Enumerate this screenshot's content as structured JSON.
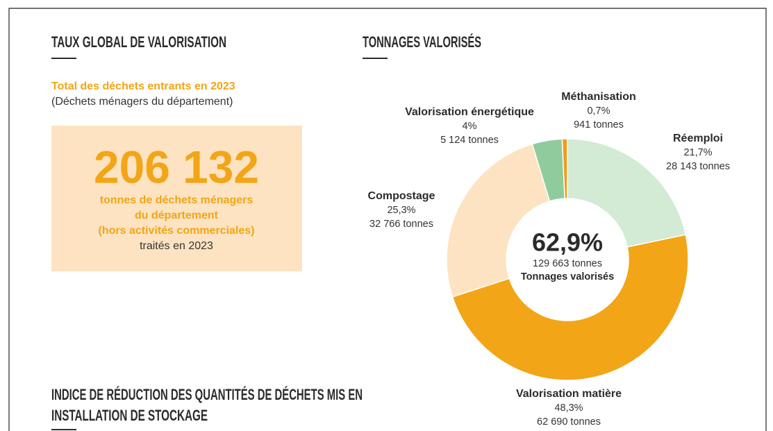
{
  "left_panel": {
    "title": "TAUX GLOBAL DE VALORISATION",
    "highlight": "Total des déchets entrants en 2023",
    "subtitle": "(Déchets ménagers du département)",
    "big_number": "206 132",
    "lines": [
      "tonnes de déchets ménagers",
      "du département",
      "(hors activités commerciales)"
    ],
    "footer": "traités en 2023"
  },
  "bottom_title": [
    "INDICE DE RÉDUCTION DES QUANTITÉS DE DÉCHETS MIS EN",
    "INSTALLATION DE STOCKAGE"
  ],
  "chart_data": {
    "type": "donut",
    "title": "TONNAGES VALORISÉS",
    "categories": [
      "Réemploi",
      "Valorisation matière",
      "Compostage",
      "Valorisation énergétique",
      "Méthanisation"
    ],
    "values": [
      21.7,
      48.3,
      25.3,
      4,
      0.7
    ],
    "value_labels": [
      "21,7%",
      "48,3%",
      "25,3%",
      "4%",
      "0,7%"
    ],
    "tonnages": [
      {
        "value": 28143,
        "label": "28 143 tonnes"
      },
      {
        "value": 62690,
        "label": "62 690 tonnes"
      },
      {
        "value": 32766,
        "label": "32 766 tonnes"
      },
      {
        "value": 5124,
        "label": "5 124 tonnes"
      },
      {
        "value": 941,
        "label": "941 tonnes"
      }
    ],
    "colors": [
      "#d3ead4",
      "#f2a516",
      "#fde3c1",
      "#8fcb9b",
      "#ef9d1c"
    ],
    "center": {
      "percent": {
        "value": 62.9,
        "label": "62,9%"
      },
      "tonnage": {
        "value": 129663,
        "label": "129 663 tonnes"
      },
      "label": "Tonnages valorisés"
    }
  }
}
